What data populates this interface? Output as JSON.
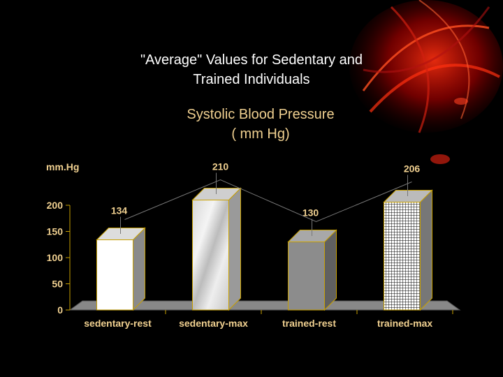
{
  "slide": {
    "title": "\"Average\" Values for Sedentary and\nTrained Individuals",
    "subtitle": "Systolic Blood Pressure\n( mm Hg)"
  },
  "colors": {
    "background": "#000000",
    "axis_text": "#f0d090",
    "axis_line": "#c8a000",
    "title_text": "#ffffff"
  },
  "chart_data": {
    "type": "bar",
    "title": "",
    "xlabel": "",
    "ylabel": "mm.Hg",
    "ylim": [
      0,
      200
    ],
    "yticks": [
      0,
      50,
      100,
      150,
      200
    ],
    "yticklabels": [
      "0",
      "50",
      "100",
      "150",
      "200"
    ],
    "categories": [
      "sedentary-rest",
      "sedentary-max",
      "trained-rest",
      "trained-max"
    ],
    "values": [
      134,
      210,
      130,
      206
    ],
    "data_labels": [
      "134",
      "210",
      "130",
      "206"
    ],
    "style": "3d",
    "grid": false,
    "bar_fills": [
      "white",
      "marble",
      "gray",
      "grid-pattern"
    ]
  }
}
